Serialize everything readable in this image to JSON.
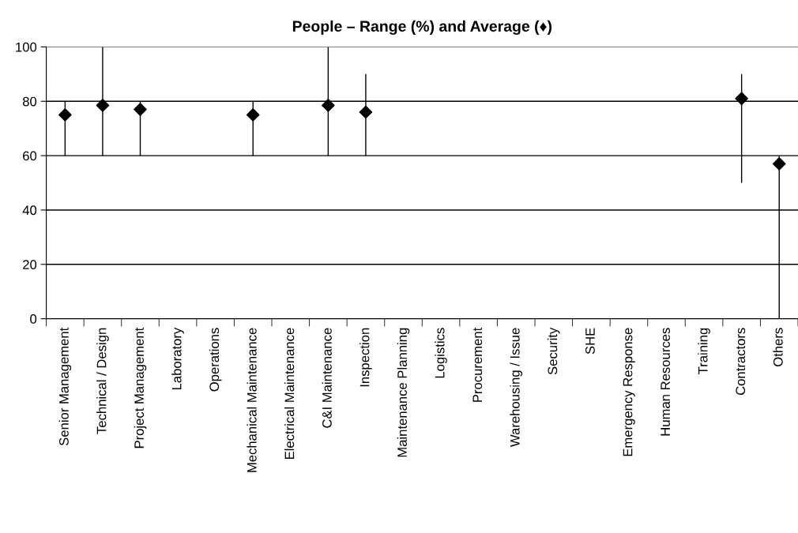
{
  "chart_data": {
    "type": "scatter",
    "title": "People – Range (%) and Average (♦)",
    "categories": [
      "Senior Management",
      "Technical / Design",
      "Project Management",
      "Laboratory",
      "Operations",
      "Mechanical Maintenance",
      "Electrical Maintenance",
      "C&I Maintenance",
      "Inspection",
      "Maintenance Planning",
      "Logistics",
      "Procurement",
      "Warehousing / Issue",
      "Security",
      "SHE",
      "Emergency Response",
      "Human Resources",
      "Training",
      "Contractors",
      "Others"
    ],
    "series": [
      {
        "color": "#000000",
        "values": [
          75,
          78.5,
          77,
          null,
          null,
          75,
          null,
          78.5,
          76,
          null,
          null,
          null,
          null,
          null,
          null,
          null,
          null,
          null,
          81,
          57
        ],
        "errors": [
          [
            60,
            80
          ],
          [
            60,
            100
          ],
          [
            60,
            80
          ],
          null,
          null,
          [
            60,
            80
          ],
          null,
          [
            60,
            100
          ],
          [
            60,
            90
          ],
          null,
          null,
          null,
          null,
          null,
          null,
          null,
          null,
          null,
          [
            50,
            90
          ],
          [
            0,
            60
          ]
        ]
      }
    ],
    "ylim": [
      0,
      100
    ],
    "yticks": [
      0,
      20,
      40,
      60,
      80,
      100
    ],
    "grid": "y",
    "marker": "diamond"
  }
}
